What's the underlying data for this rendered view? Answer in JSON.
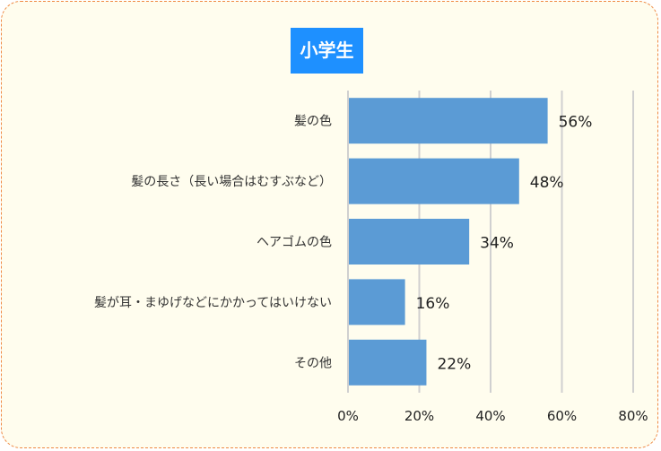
{
  "chart_data": {
    "type": "bar",
    "orientation": "horizontal",
    "title": "小学生",
    "categories": [
      "髪の色",
      "髪の長さ（長い場合はむすぶなど）",
      "ヘアゴムの色",
      "髪が耳・まゆげなどにかかってはいけない",
      "その他"
    ],
    "values": [
      56,
      48,
      34,
      16,
      22
    ],
    "data_labels": [
      "56%",
      "48%",
      "34%",
      "16%",
      "22%"
    ],
    "xlim": [
      0,
      80
    ],
    "x_ticks": [
      "0%",
      "20%",
      "40%",
      "60%",
      "80%"
    ],
    "grid": true,
    "bar_color": "#5b9bd5",
    "title_bg_color": "#1e90ff",
    "border_color": "#ef8a45",
    "background_color": "#fffdee"
  }
}
